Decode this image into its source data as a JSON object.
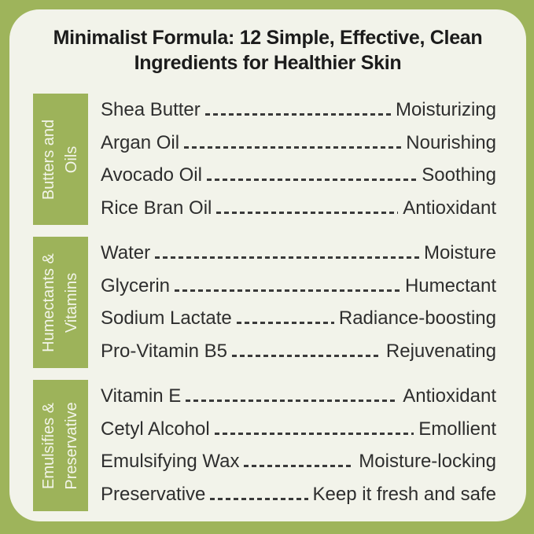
{
  "title": {
    "line1": "Minimalist Formula: 12 Simple, Effective, Clean",
    "line2": "Ingredients for Healthier Skin"
  },
  "colors": {
    "border_green": "#9EB45B",
    "label_box_green": "#9DB35A",
    "card_background": "#F2F3EA",
    "title_text": "#1B1B1B",
    "body_text": "#2E2E2E",
    "label_text": "#F3F5EA"
  },
  "groups": [
    {
      "label_line1": "Butters and",
      "label_line2": "Oils",
      "items": [
        {
          "name": "Shea Butter",
          "benefit": "Moisturizing"
        },
        {
          "name": "Argan Oil",
          "benefit": "Nourishing"
        },
        {
          "name": "Avocado Oil",
          "benefit": "Soothing"
        },
        {
          "name": "Rice Bran Oil",
          "benefit": "Antioxidant"
        }
      ]
    },
    {
      "label_line1": "Humectants &",
      "label_line2": "Vitamins",
      "items": [
        {
          "name": "Water",
          "benefit": "Moisture"
        },
        {
          "name": "Glycerin",
          "benefit": "Humectant"
        },
        {
          "name": "Sodium Lactate",
          "benefit": "Radiance-boosting"
        },
        {
          "name": "Pro-Vitamin B5",
          "benefit": "Rejuvenating"
        }
      ]
    },
    {
      "label_line1": "Emulsifies &",
      "label_line2": "Preservative",
      "items": [
        {
          "name": "Vitamin E",
          "benefit": "Antioxidant"
        },
        {
          "name": "Cetyl Alcohol",
          "benefit": "Emollient"
        },
        {
          "name": "Emulsifying Wax",
          "benefit": "Moisture-locking"
        },
        {
          "name": "Preservative",
          "benefit": "Keep it fresh and safe"
        }
      ]
    }
  ]
}
